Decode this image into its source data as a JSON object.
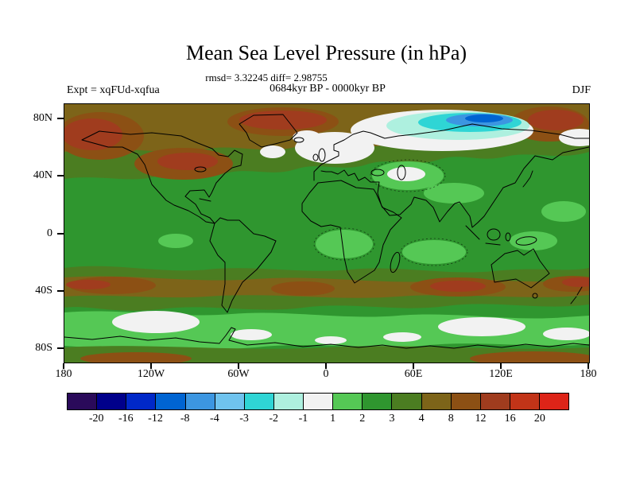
{
  "labels": {
    "title": "Mean Sea Level Pressure (in hPa)",
    "stats": "rmsd= 3.32245 diff= 2.98755",
    "experiment": "Expt = xqFUd-xqfua",
    "period": "0684kyr BP - 0000kyr BP",
    "season": "DJF"
  },
  "chart_data": {
    "type": "heatmap",
    "title": "Mean Sea Level Pressure (in hPa)",
    "units": "hPa",
    "stats": {
      "rmsd": 3.32245,
      "diff": 2.98755
    },
    "experiment": "xqFUd-xqfua",
    "period": "0684kyr BP - 0000kyr BP",
    "season": "DJF",
    "x_axis": {
      "range": [
        -180,
        180
      ],
      "ticks": [
        {
          "label": "180",
          "value": -180
        },
        {
          "label": "120W",
          "value": -120
        },
        {
          "label": "60W",
          "value": -60
        },
        {
          "label": "0",
          "value": 0
        },
        {
          "label": "60E",
          "value": 60
        },
        {
          "label": "120E",
          "value": 120
        },
        {
          "label": "180",
          "value": 180
        }
      ]
    },
    "y_axis": {
      "range": [
        -90,
        90
      ],
      "ticks": [
        {
          "label": "80N",
          "value": 80
        },
        {
          "label": "40N",
          "value": 40
        },
        {
          "label": "0",
          "value": 0
        },
        {
          "label": "40S",
          "value": -40
        },
        {
          "label": "80S",
          "value": -80
        }
      ]
    },
    "colorbar": {
      "levels": [
        -20,
        -16,
        -12,
        -8,
        -4,
        -3,
        -2,
        -1,
        1,
        2,
        3,
        4,
        8,
        12,
        16,
        20
      ],
      "colors": [
        "#2a0a5a",
        "#00008b",
        "#0028c8",
        "#0064d2",
        "#3c96e1",
        "#6fc3ee",
        "#2fd5d5",
        "#aef0df",
        "#f2f2f2",
        "#55c855",
        "#2f962f",
        "#4b7d21",
        "#7d6419",
        "#8c5014",
        "#a03c1e",
        "#c23418",
        "#dd2418"
      ]
    },
    "map_palette": {
      "base": "#2f962f",
      "lightgreen": "#55c855",
      "olive": "#4b7d21",
      "khaki": "#7d6419",
      "brown": "#8c5014",
      "redbrown": "#a03c1e",
      "white": "#f2f2f2",
      "palecyan": "#aef0df",
      "cyan": "#2fd5d5",
      "midblue": "#3c96e1",
      "blue": "#0064d2",
      "coast": "#000000"
    },
    "regions": [
      {
        "area": "Arctic 60E-150E near 75N-88N",
        "value_range": [
          -20,
          -1
        ]
      },
      {
        "area": "North Atlantic / Scandinavia / Arctic fringe",
        "value_range": [
          -1,
          1
        ]
      },
      {
        "area": "High northern latitudes band 55N-85N",
        "value_range": [
          4,
          20
        ]
      },
      {
        "area": "Most oceans and tropics",
        "value_range": [
          2,
          4
        ]
      },
      {
        "area": "Southern mid-latitude band 25S-45S",
        "value_range": [
          4,
          16
        ]
      },
      {
        "area": "Southern Ocean band 50S-75S",
        "value_range": [
          1,
          2
        ]
      },
      {
        "area": "Patches in Southern Ocean and near Antarctica",
        "value_range": [
          -1,
          1
        ]
      }
    ]
  }
}
